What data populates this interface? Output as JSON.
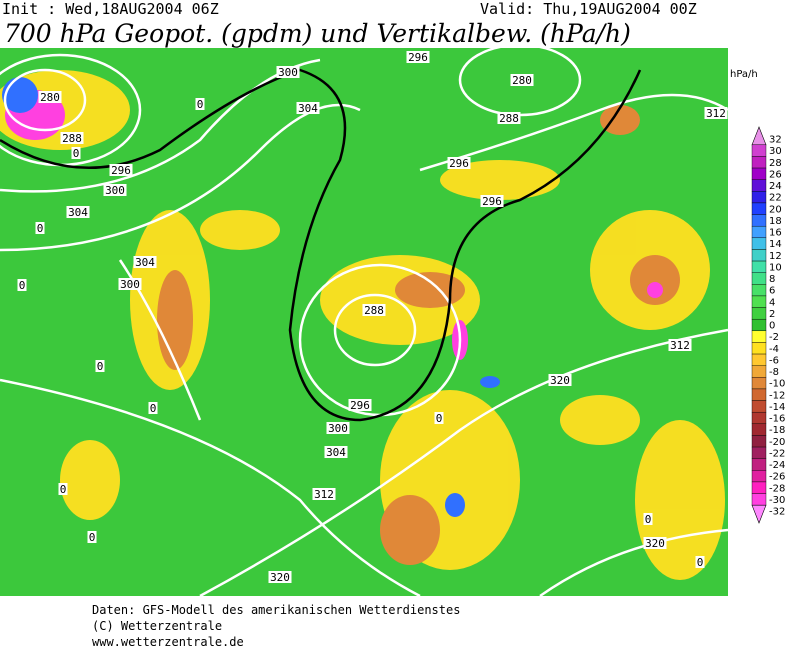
{
  "header": {
    "init": "Init : Wed,18AUG2004 06Z",
    "valid": "Valid: Thu,19AUG2004 00Z",
    "title": "700 hPa Geopot. (gpdm) und Vertikalbew. (hPa/h)"
  },
  "colorbar": {
    "unit": "hPa/h",
    "labels": [
      32,
      30,
      28,
      26,
      24,
      22,
      20,
      18,
      16,
      14,
      12,
      10,
      8,
      6,
      4,
      2,
      0,
      -2,
      -4,
      -6,
      -8,
      -10,
      -12,
      -14,
      -16,
      -18,
      -20,
      -22,
      -24,
      -26,
      -28,
      -30,
      -32
    ],
    "colors": [
      "#e890e8",
      "#d040d0",
      "#c020c0",
      "#a000c8",
      "#6010d8",
      "#3020e8",
      "#2040ff",
      "#3070ff",
      "#40a0ff",
      "#40c0e8",
      "#40d0c8",
      "#40e0a8",
      "#40e088",
      "#48e068",
      "#50e050",
      "#40d040",
      "#30c030",
      "#ffff30",
      "#ffe020",
      "#ffc830",
      "#f0a838",
      "#e08838",
      "#d06830",
      "#c04c30",
      "#b03830",
      "#a02830",
      "#902040",
      "#a02060",
      "#c02080",
      "#e020a0",
      "#ff20c0",
      "#ff40e0",
      "#ff88ff"
    ]
  },
  "contour_labels": [
    "280",
    "288",
    "296",
    "300",
    "304",
    "304",
    "300",
    "300",
    "304",
    "296",
    "280",
    "288",
    "296",
    "296",
    "312",
    "288",
    "296",
    "300",
    "304",
    "312",
    "320",
    "320",
    "312",
    "320",
    "0",
    "0",
    "0",
    "0",
    "0",
    "0",
    "0",
    "0",
    "0",
    "0",
    "0"
  ],
  "footer": [
    "Daten: GFS-Modell des amerikanischen Wetterdienstes",
    "(C) Wetterzentrale",
    "www.wetterzentrale.de"
  ]
}
